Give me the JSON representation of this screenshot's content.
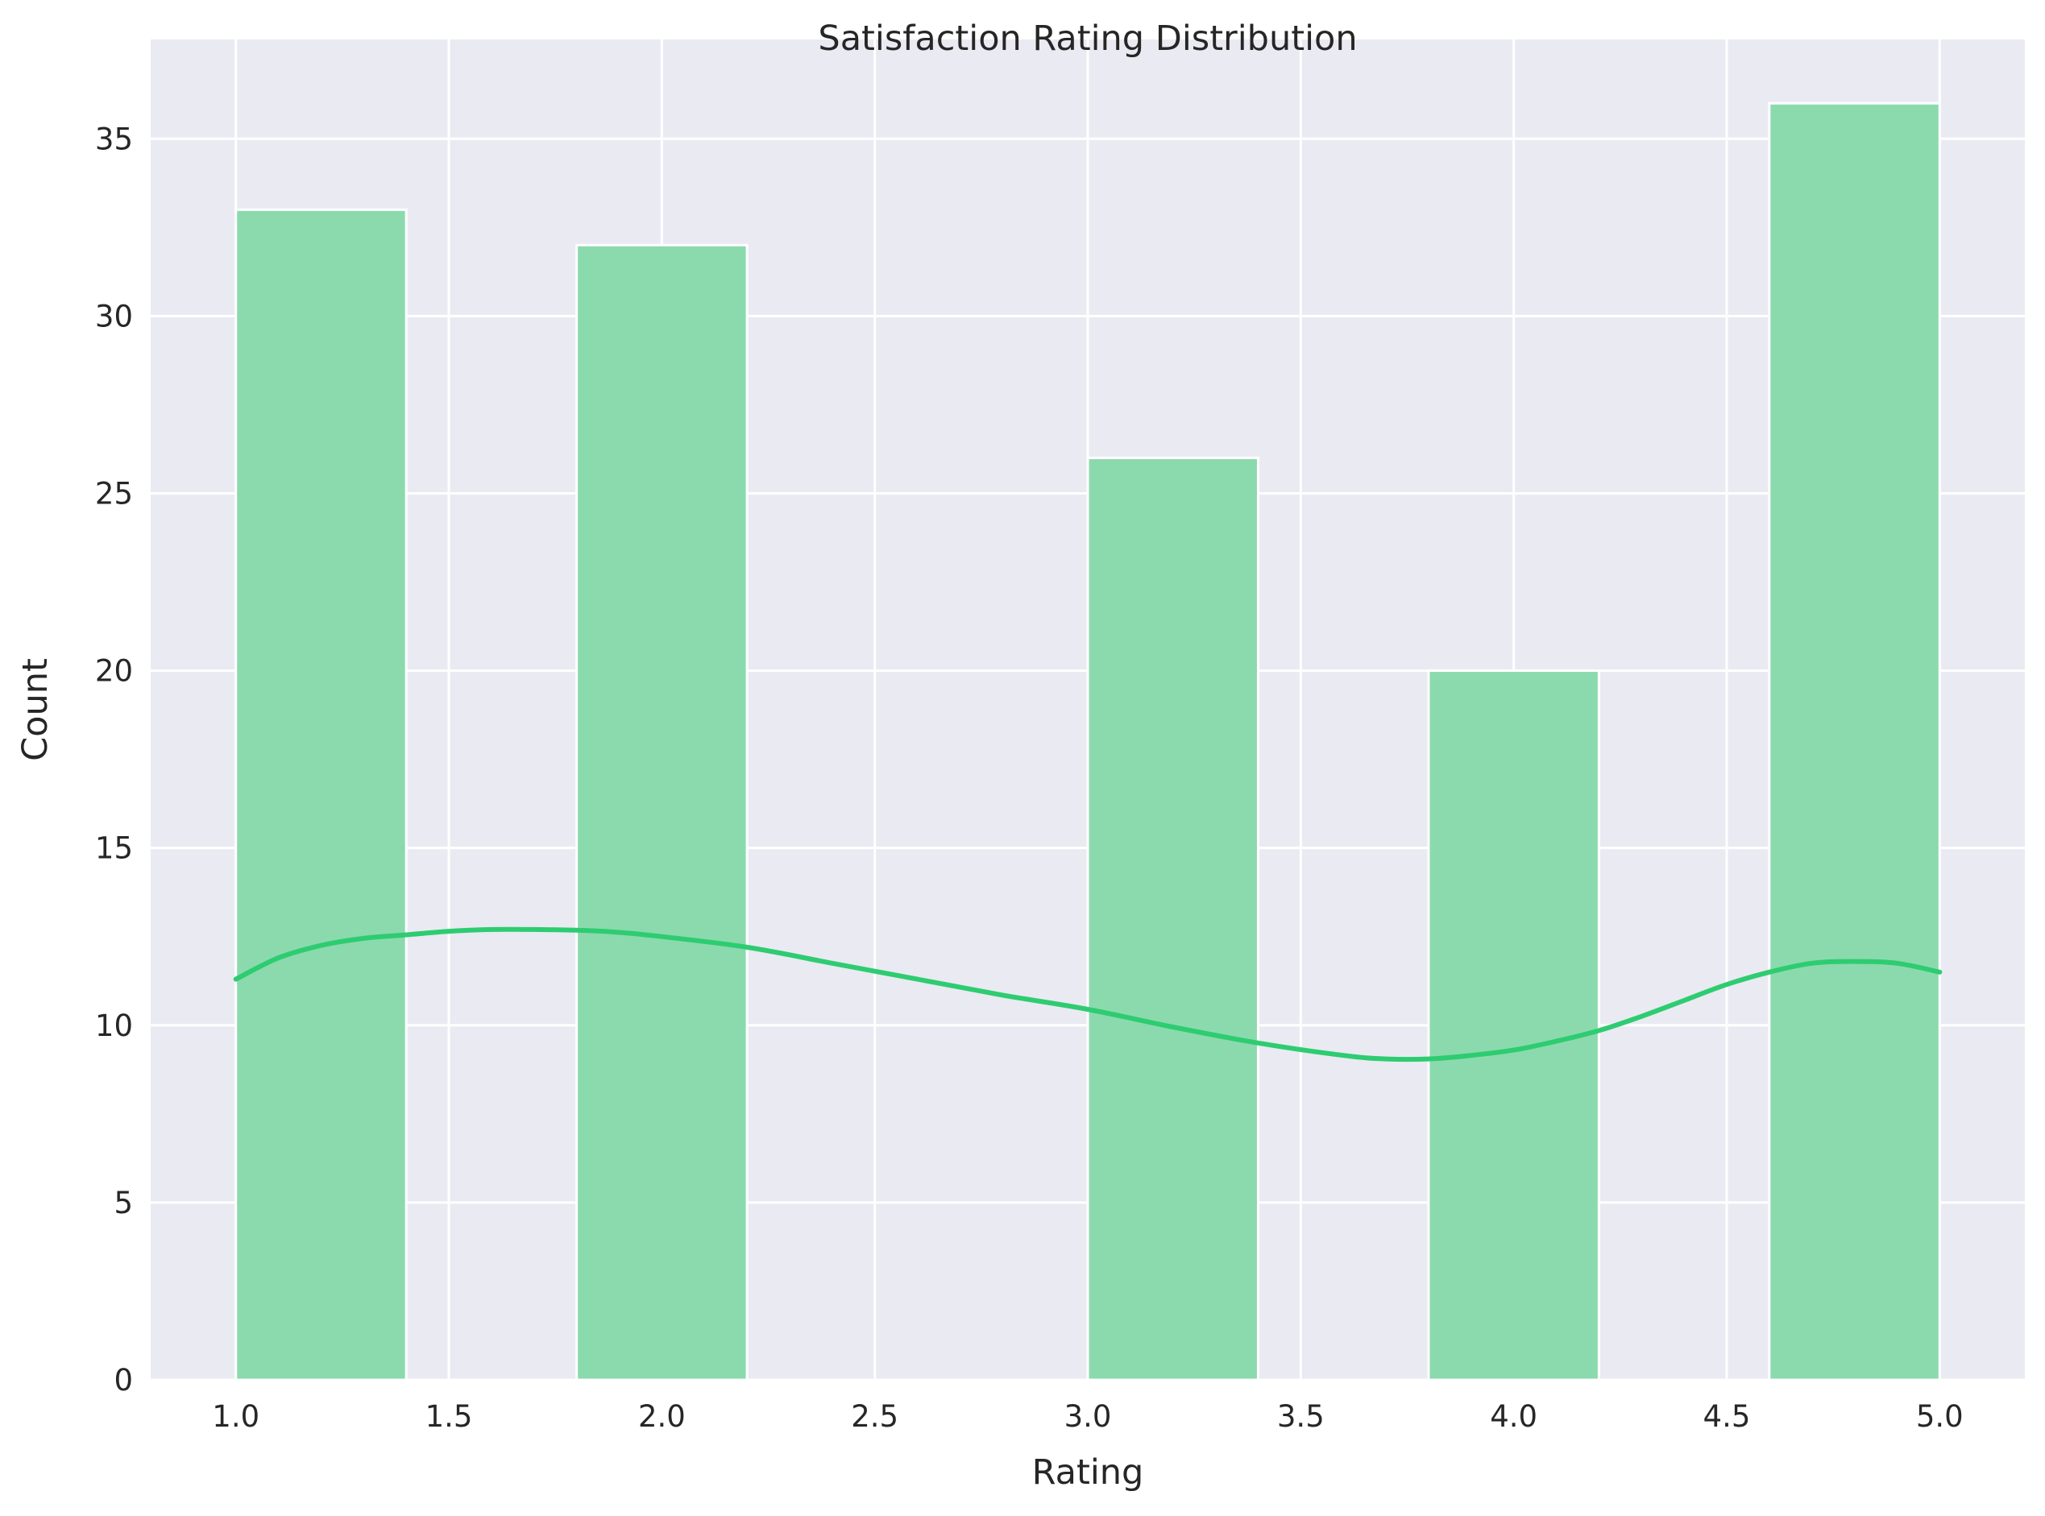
{
  "chart_data": {
    "type": "bar",
    "title": "Satisfaction Rating Distribution",
    "xlabel": "Rating",
    "ylabel": "Count",
    "xlim": [
      0.8,
      5.2
    ],
    "ylim": [
      0,
      37.8
    ],
    "xticks": [
      "1.0",
      "1.5",
      "2.0",
      "2.5",
      "3.0",
      "3.5",
      "4.0",
      "4.5",
      "5.0"
    ],
    "yticks": [
      "0",
      "5",
      "10",
      "15",
      "20",
      "25",
      "30",
      "35"
    ],
    "bins": [
      {
        "x0": 1.0,
        "x1": 1.4,
        "count": 33
      },
      {
        "x0": 1.4,
        "x1": 1.8,
        "count": 0
      },
      {
        "x0": 1.8,
        "x1": 2.2,
        "count": 32
      },
      {
        "x0": 2.2,
        "x1": 2.6,
        "count": 0
      },
      {
        "x0": 2.6,
        "x1": 3.0,
        "count": 0
      },
      {
        "x0": 3.0,
        "x1": 3.4,
        "count": 26
      },
      {
        "x0": 3.4,
        "x1": 3.8,
        "count": 0
      },
      {
        "x0": 3.8,
        "x1": 4.2,
        "count": 20
      },
      {
        "x0": 4.2,
        "x1": 4.6,
        "count": 0
      },
      {
        "x0": 4.6,
        "x1": 5.0,
        "count": 36
      }
    ],
    "kde_curve": {
      "x": [
        1.0,
        1.1,
        1.2,
        1.3,
        1.4,
        1.5,
        1.6,
        1.7,
        1.8,
        1.9,
        2.0,
        2.2,
        2.4,
        2.6,
        2.8,
        3.0,
        3.2,
        3.4,
        3.6,
        3.7,
        3.8,
        3.9,
        4.0,
        4.1,
        4.2,
        4.3,
        4.4,
        4.5,
        4.6,
        4.7,
        4.8,
        4.9,
        5.0
      ],
      "y": [
        11.3,
        11.9,
        12.25,
        12.45,
        12.55,
        12.65,
        12.7,
        12.7,
        12.68,
        12.62,
        12.5,
        12.2,
        11.75,
        11.3,
        10.85,
        10.45,
        9.95,
        9.5,
        9.15,
        9.05,
        9.05,
        9.15,
        9.3,
        9.55,
        9.85,
        10.25,
        10.7,
        11.15,
        11.5,
        11.75,
        11.8,
        11.75,
        11.5
      ]
    },
    "grid": true,
    "colors": {
      "bar_fill": "#8bdaae",
      "bar_edge": "#ffffff",
      "kde_line": "#2ecc71",
      "plot_background": "#eaeaf2",
      "grid": "#ffffff"
    }
  }
}
